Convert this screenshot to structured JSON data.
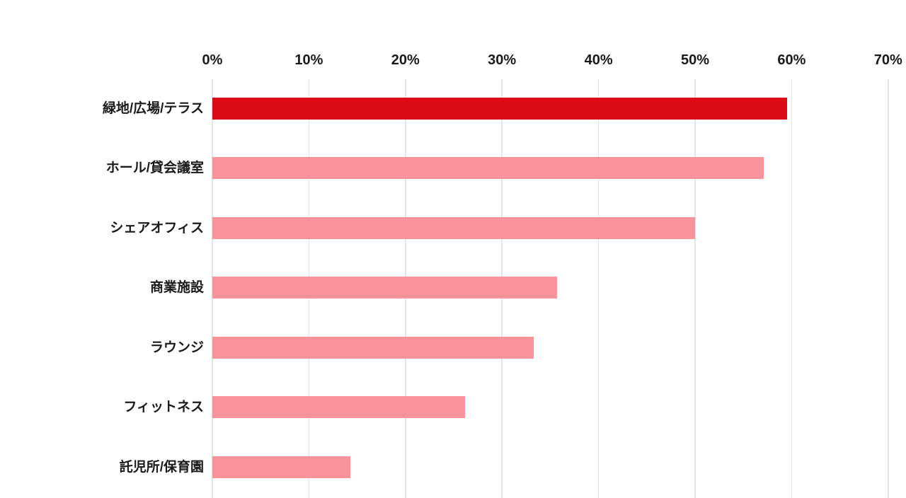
{
  "chart_data": {
    "type": "bar",
    "orientation": "horizontal",
    "title": "",
    "xlabel": "",
    "ylabel": "",
    "categories": [
      "緑地/広場/テラス",
      "ホール/貸会議室",
      "シェアオフィス",
      "商業施設",
      "ラウンジ",
      "フィットネス",
      "託児所/保育園"
    ],
    "values": [
      59.5,
      57.1,
      50.0,
      35.7,
      33.3,
      26.2,
      14.3
    ],
    "x_ticks": [
      "0%",
      "10%",
      "20%",
      "30%",
      "40%",
      "50%",
      "60%",
      "70%"
    ],
    "x_tick_values": [
      0,
      10,
      20,
      30,
      40,
      50,
      60,
      70
    ],
    "xlim": [
      0,
      70
    ],
    "grid": true,
    "legend": false,
    "colors": {
      "highlight_bar": "#dc0b15",
      "default_bar": "#f9939b",
      "gridline": "#e4e4e6",
      "text": "#1a1a1a",
      "background": "#ffffff"
    },
    "bar_colors": [
      "#dc0b15",
      "#f9939b",
      "#f9939b",
      "#f9939b",
      "#f9939b",
      "#f9939b",
      "#f9939b"
    ]
  }
}
